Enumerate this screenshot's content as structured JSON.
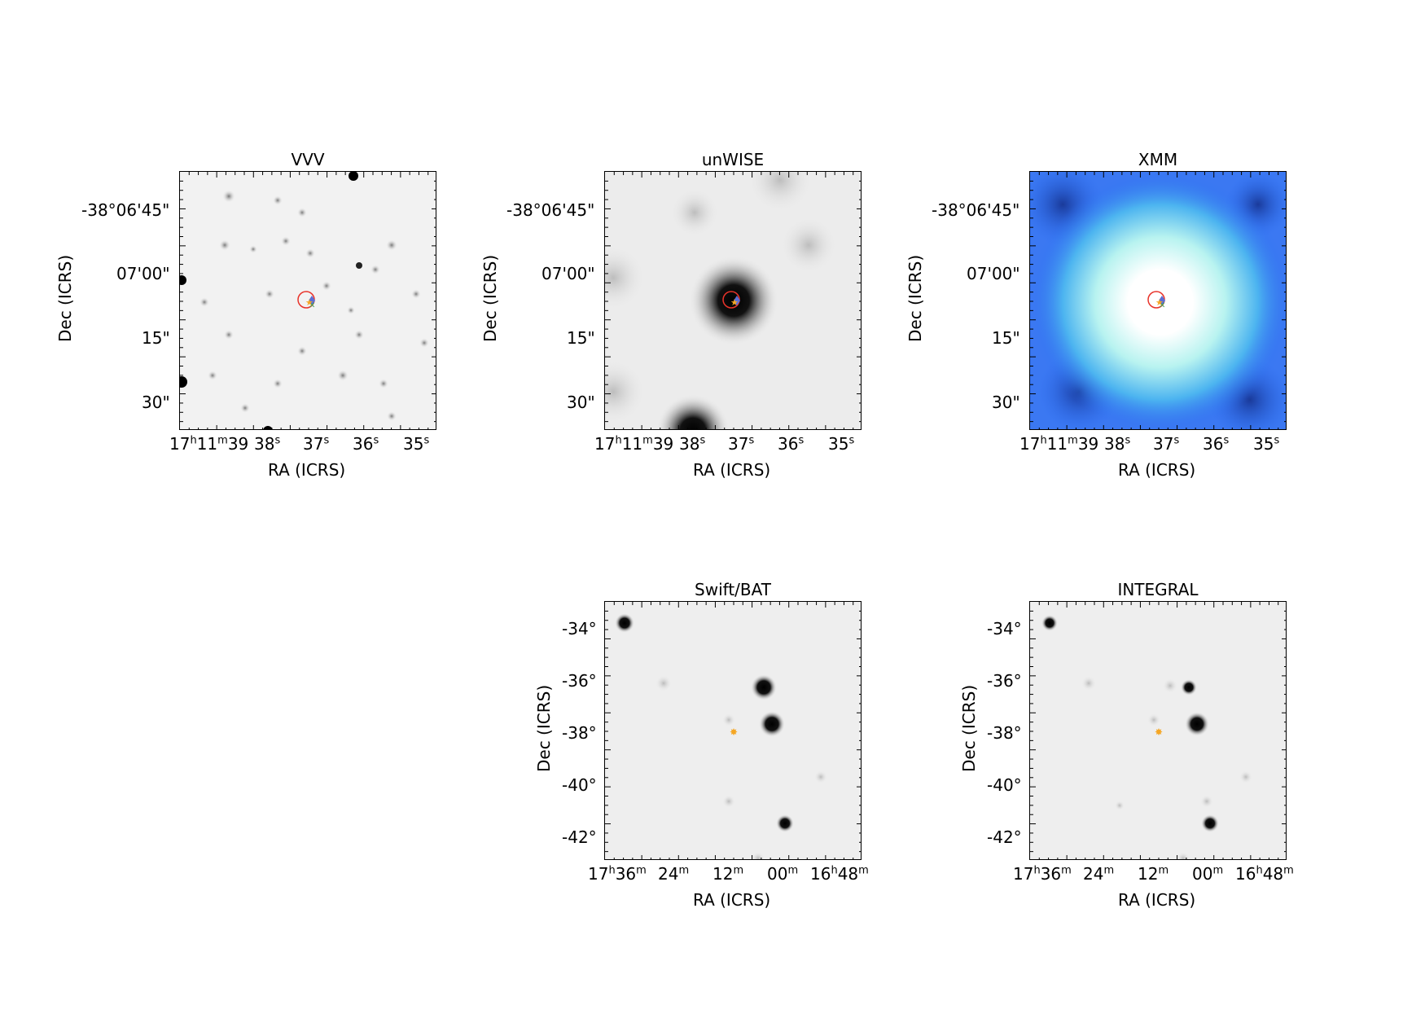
{
  "panels": {
    "vvv": {
      "title": "VVV",
      "xlabel": "RA (ICRS)",
      "ylabel": "Dec (ICRS)"
    },
    "unwise": {
      "title": "unWISE",
      "xlabel": "RA (ICRS)",
      "ylabel": "Dec (ICRS)"
    },
    "xmm": {
      "title": "XMM",
      "xlabel": "RA (ICRS)",
      "ylabel": "Dec (ICRS)"
    },
    "swiftbat": {
      "title": "Swift/BAT",
      "xlabel": "RA (ICRS)",
      "ylabel": "Dec (ICRS)"
    },
    "integral": {
      "title": "INTEGRAL",
      "xlabel": "RA (ICRS)",
      "ylabel": "Dec (ICRS)"
    }
  },
  "small_field": {
    "yticks": [
      "-38°06'45\"",
      "07'00\"",
      "15\"",
      "30\""
    ],
    "xticks": [
      {
        "main": "17",
        "sup1": "h",
        "mid": "11",
        "sup2": "m",
        "tail": "39",
        "sup3": "",
        "after": ""
      },
      {
        "main": "38",
        "sup1": "s"
      },
      {
        "main": "37",
        "sup1": "s"
      },
      {
        "main": "36",
        "sup1": "s"
      },
      {
        "main": "35",
        "sup1": "s"
      }
    ]
  },
  "large_field": {
    "yticks": [
      "-34°",
      "-36°",
      "-38°",
      "-40°",
      "-42°"
    ],
    "xticks": [
      {
        "main": "17",
        "sup1": "h",
        "mid": "36",
        "sup2": "m"
      },
      {
        "main": "24",
        "sup1": "m"
      },
      {
        "main": "12",
        "sup1": "m"
      },
      {
        "main": "00",
        "sup1": "m"
      },
      {
        "main": "16",
        "sup1": "h",
        "mid": "48",
        "sup2": "m"
      }
    ]
  },
  "colors": {
    "marker_circle": "#e8332a",
    "star_orange": "#f5a623",
    "diamond_blue": "#5a6fd6",
    "cross_green": "#3aa655"
  }
}
